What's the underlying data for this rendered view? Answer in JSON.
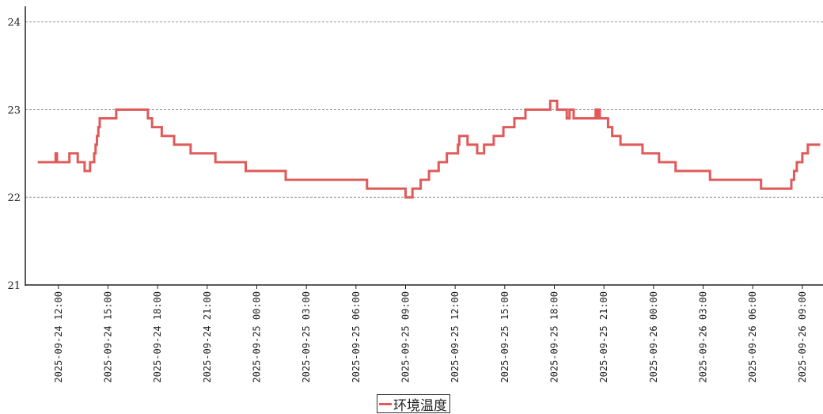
{
  "chart_data": {
    "type": "line",
    "title": "",
    "xlabel": "",
    "ylabel": "",
    "ylim": [
      21,
      24.25
    ],
    "xlim": [
      "2025-09-24 10:00",
      "2025-09-26 10:15"
    ],
    "grid": "horizontal dashed",
    "legend_position": "bottom-center",
    "x_ticks": [
      "2025-09-24 12:00",
      "2025-09-24 15:00",
      "2025-09-24 18:00",
      "2025-09-24 21:00",
      "2025-09-25 00:00",
      "2025-09-25 03:00",
      "2025-09-25 06:00",
      "2025-09-25 09:00",
      "2025-09-25 12:00",
      "2025-09-25 15:00",
      "2025-09-25 18:00",
      "2025-09-25 21:00",
      "2025-09-26 00:00",
      "2025-09-26 03:00",
      "2025-09-26 06:00",
      "2025-09-26 09:00"
    ],
    "y_ticks": [
      "21",
      "22",
      "23",
      "24"
    ],
    "series": [
      {
        "name": "环境温度",
        "color": "#e05a5a",
        "step": true,
        "x": [
          "2025-09-24 10:45",
          "2025-09-24 11:50",
          "2025-09-24 11:55",
          "2025-09-24 12:40",
          "2025-09-24 13:10",
          "2025-09-24 13:35",
          "2025-09-24 13:55",
          "2025-09-24 14:10",
          "2025-09-24 14:15",
          "2025-09-24 14:20",
          "2025-09-24 14:25",
          "2025-09-24 14:30",
          "2025-09-24 15:30",
          "2025-09-24 17:25",
          "2025-09-24 17:40",
          "2025-09-24 18:15",
          "2025-09-24 19:00",
          "2025-09-24 20:00",
          "2025-09-24 21:30",
          "2025-09-24 23:20",
          "2025-09-25 01:45",
          "2025-09-25 06:40",
          "2025-09-25 09:00",
          "2025-09-25 09:25",
          "2025-09-25 09:55",
          "2025-09-25 10:25",
          "2025-09-25 11:00",
          "2025-09-25 11:30",
          "2025-09-25 12:10",
          "2025-09-25 12:15",
          "2025-09-25 12:45",
          "2025-09-25 13:20",
          "2025-09-25 13:45",
          "2025-09-25 14:20",
          "2025-09-25 14:55",
          "2025-09-25 15:35",
          "2025-09-25 16:15",
          "2025-09-25 17:45",
          "2025-09-25 18:10",
          "2025-09-25 18:45",
          "2025-09-25 18:55",
          "2025-09-25 19:10",
          "2025-09-25 20:30",
          "2025-09-25 20:35",
          "2025-09-25 20:40",
          "2025-09-25 20:45",
          "2025-09-25 21:15",
          "2025-09-25 21:30",
          "2025-09-25 22:00",
          "2025-09-25 23:20",
          "2025-09-26 00:20",
          "2025-09-26 01:20",
          "2025-09-26 03:25",
          "2025-09-26 06:25",
          "2025-09-26 06:30",
          "2025-09-26 08:20",
          "2025-09-26 08:30",
          "2025-09-26 08:40",
          "2025-09-26 09:00",
          "2025-09-26 09:20",
          "2025-09-26 09:40",
          "2025-09-26 10:05"
        ],
        "values": [
          22.4,
          22.5,
          22.4,
          22.5,
          22.4,
          22.3,
          22.4,
          22.5,
          22.6,
          22.7,
          22.8,
          22.9,
          23.0,
          22.9,
          22.8,
          22.7,
          22.6,
          22.5,
          22.4,
          22.3,
          22.2,
          22.1,
          22.0,
          22.1,
          22.2,
          22.3,
          22.4,
          22.5,
          22.6,
          22.7,
          22.6,
          22.5,
          22.6,
          22.7,
          22.8,
          22.9,
          23.0,
          23.1,
          23.0,
          22.9,
          23.0,
          22.9,
          23.0,
          22.9,
          23.0,
          22.9,
          22.8,
          22.7,
          22.6,
          22.5,
          22.4,
          22.3,
          22.2,
          22.2,
          22.1,
          22.2,
          22.3,
          22.4,
          22.5,
          22.6,
          22.6,
          22.6
        ]
      }
    ]
  }
}
